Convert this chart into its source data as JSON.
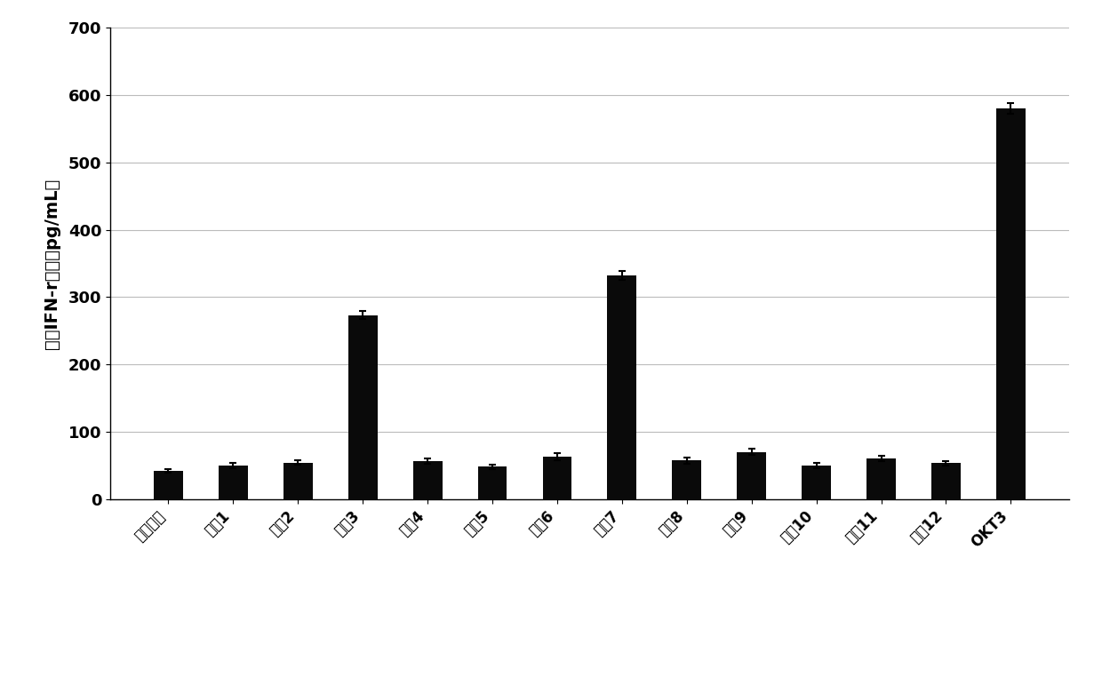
{
  "categories": [
    "对照多肽",
    "多肽1",
    "多肽2",
    "多肽3",
    "多肽4",
    "多肽5",
    "多肽6",
    "多肽7",
    "多肽8",
    "多肽9",
    "多肽10",
    "多肽11",
    "多肽12",
    "OKT3"
  ],
  "values": [
    42,
    50,
    54,
    273,
    56,
    48,
    63,
    332,
    57,
    70,
    50,
    60,
    53,
    580
  ],
  "errors": [
    3,
    4,
    3,
    6,
    4,
    3,
    5,
    7,
    5,
    5,
    4,
    4,
    3,
    8
  ],
  "bar_color": "#0a0a0a",
  "ylabel": "释放IFN-r浓度（pg/mL）",
  "ylim": [
    0,
    700
  ],
  "yticks": [
    0,
    100,
    200,
    300,
    400,
    500,
    600,
    700
  ],
  "background_color": "#ffffff",
  "bar_width": 0.45,
  "grid_color": "#bbbbbb",
  "ylabel_fontsize": 14,
  "tick_fontsize": 13,
  "xtick_fontsize": 12,
  "figsize": [
    12.4,
    7.8
  ],
  "dpi": 100
}
